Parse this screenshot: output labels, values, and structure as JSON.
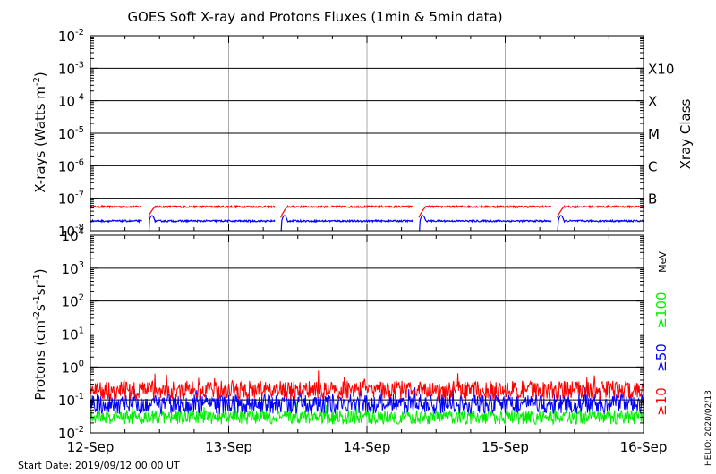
{
  "title": "GOES Soft X-ray and Protons Fluxes   (1min & 5min data)",
  "start_date": "Start Date: 2019/09/12 00:00 UT",
  "credit": "HELIO: 2020/02/13",
  "colors": {
    "red": "#ff0000",
    "blue": "#0000ff",
    "green": "#00ee00",
    "background": "#ffffff",
    "grid": "#aaaaaa"
  },
  "chart_data": [
    {
      "type": "line",
      "title": "GOES Soft X-ray and Protons Fluxes   (1min & 5min data)",
      "ylabel": "X-rays (Watts m-2)",
      "ylabel_base": "X-rays (Watts m",
      "ylabel_sup": "-2",
      "ylabel_end": ")",
      "yscale": "log",
      "ylim": [
        1e-08,
        0.01
      ],
      "ytick_exponents": [
        "-8",
        "-7",
        "-6",
        "-5",
        "-4",
        "-3",
        "-2"
      ],
      "ytick_base": "10",
      "xlim": [
        "2019-09-12",
        "2019-09-16"
      ],
      "x_tick_labels": [
        "12-Sep",
        "13-Sep",
        "14-Sep",
        "15-Sep",
        "16-Sep"
      ],
      "right_axis_label": "Xray Class",
      "xray_classes": [
        {
          "label": "X10",
          "value": 0.001
        },
        {
          "label": "X",
          "value": 0.0001
        },
        {
          "label": "M",
          "value": 1e-05
        },
        {
          "label": "C",
          "value": 1e-06
        },
        {
          "label": "B",
          "value": 1e-07
        }
      ],
      "series": [
        {
          "color": "#ff0000",
          "baseline": 5.5e-08,
          "gaps": [
            [
              "2019-09-12 09:00",
              "2019-09-12 10:00"
            ],
            [
              "2019-09-13 08:00",
              "2019-09-13 09:00"
            ],
            [
              "2019-09-14 08:00",
              "2019-09-14 09:00"
            ],
            [
              "2019-09-15 08:00",
              "2019-09-15 09:00"
            ]
          ]
        },
        {
          "color": "#0000ff",
          "baseline": 2e-08,
          "gaps": [
            [
              "2019-09-12 09:00",
              "2019-09-12 10:00"
            ],
            [
              "2019-09-13 08:00",
              "2019-09-13 09:00"
            ],
            [
              "2019-09-14 08:00",
              "2019-09-14 09:00"
            ],
            [
              "2019-09-15 08:00",
              "2019-09-15 09:00"
            ]
          ]
        }
      ]
    },
    {
      "type": "line",
      "ylabel": "Protons (cm-2s-1sr-1)",
      "ylabel_parts": [
        "Protons (cm",
        "-2",
        "s",
        "-1",
        "sr",
        "-1",
        ")"
      ],
      "yscale": "log",
      "ylim": [
        0.01,
        10000.0
      ],
      "ytick_exponents": [
        "-2",
        "-1",
        "0",
        "1",
        "2",
        "3",
        "4"
      ],
      "ytick_base": "10",
      "threshold": 10,
      "xlim": [
        "2019-09-12",
        "2019-09-16"
      ],
      "unit_label": "MeV",
      "series": [
        {
          "name": "≥10",
          "color": "#ff0000",
          "baseline": 0.2
        },
        {
          "name": "≥50",
          "color": "#0000ff",
          "baseline": 0.075
        },
        {
          "name": "≥100",
          "color": "#00ee00",
          "baseline": 0.03
        }
      ]
    }
  ]
}
